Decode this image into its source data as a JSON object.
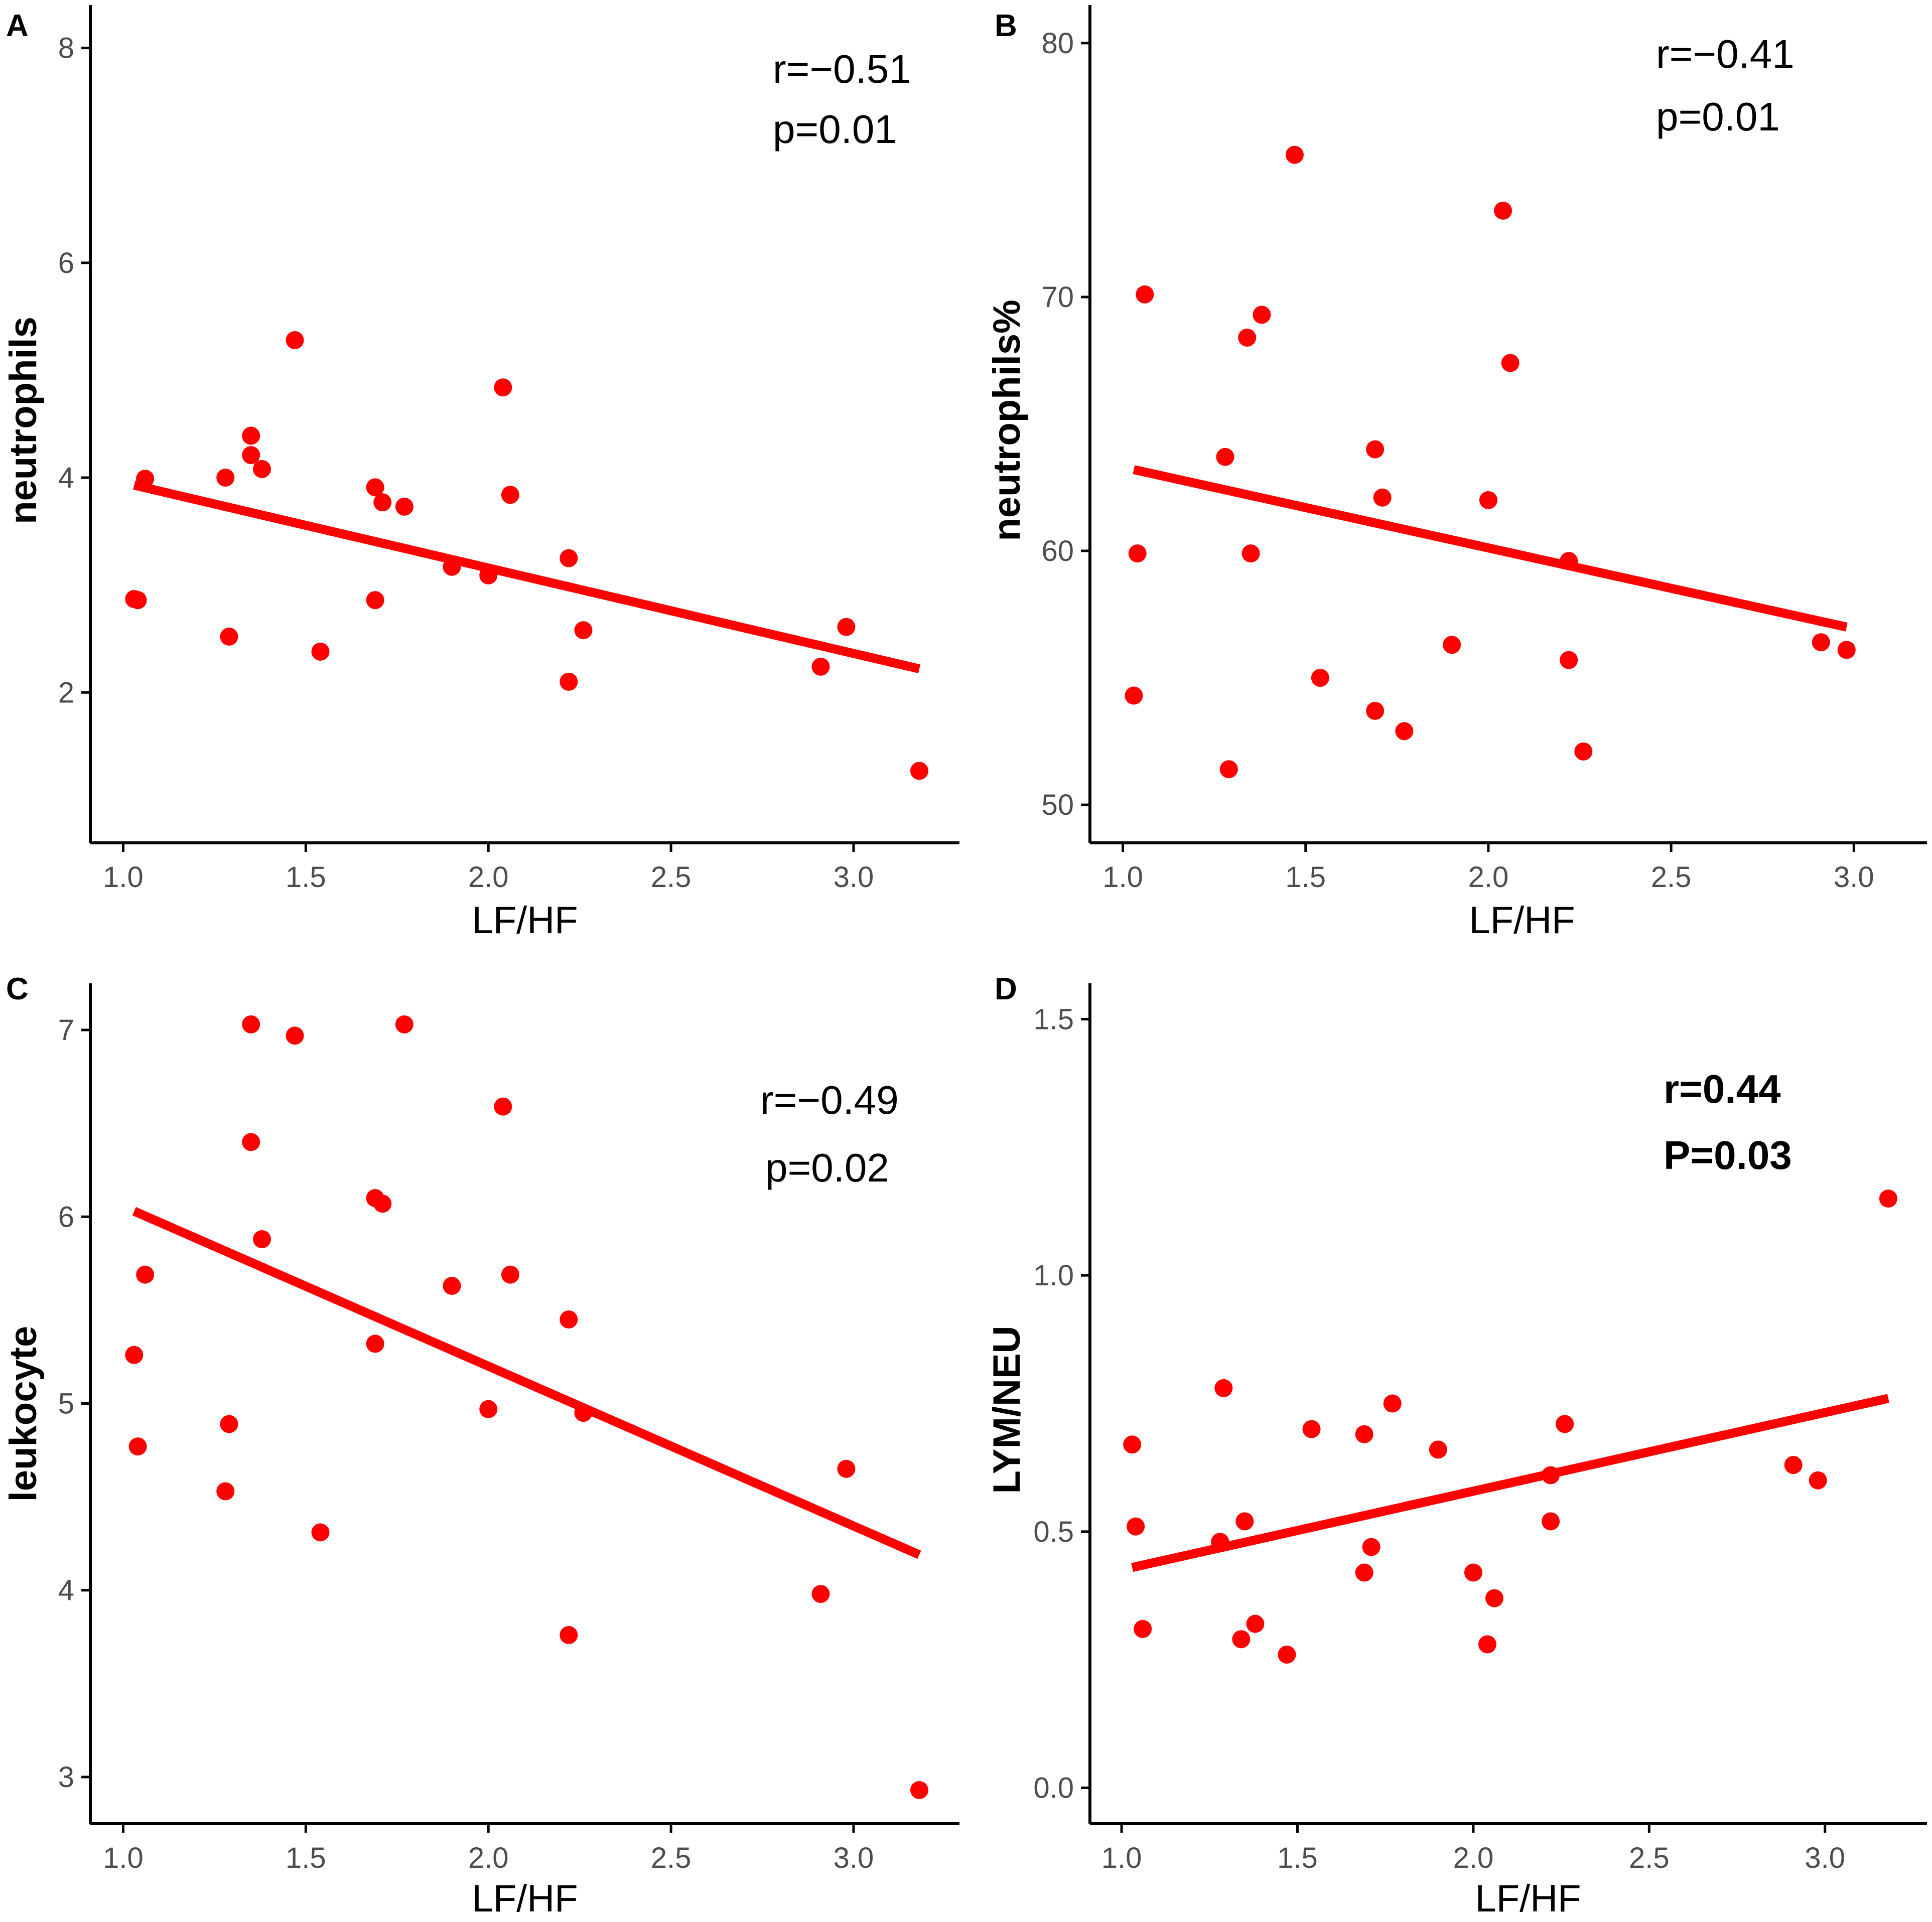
{
  "colors": {
    "point": "#ff0000",
    "line": "#ff0000",
    "axis": "#000000",
    "tick_text": "#4d4d4d"
  },
  "chart_data": [
    {
      "panel": "A",
      "type": "scatter",
      "xlabel": "LF/HF",
      "ylabel": "neutrophils",
      "xlim": [
        0.91,
        3.29
      ],
      "ylim": [
        0.6,
        8.4
      ],
      "xticks": [
        1.0,
        1.5,
        2.0,
        2.5,
        3.0
      ],
      "xtick_labels": [
        "1.0",
        "1.5",
        "2.0",
        "2.5",
        "3.0"
      ],
      "yticks": [
        2,
        4,
        6,
        8
      ],
      "ytick_labels": [
        "2",
        "4",
        "6",
        "8"
      ],
      "stat_lines": [
        "r=−0.51",
        "p=0.01"
      ],
      "stat_bold": false,
      "fit": {
        "x": [
          1.03,
          3.18
        ],
        "y": [
          3.93,
          2.22
        ]
      },
      "points": {
        "x": [
          1.03,
          1.04,
          1.06,
          1.28,
          1.29,
          1.35,
          1.35,
          1.38,
          1.47,
          1.54,
          1.69,
          1.69,
          1.71,
          1.77,
          1.9,
          2.0,
          2.04,
          2.06,
          2.22,
          2.22,
          2.26,
          2.91,
          2.98,
          3.18
        ],
        "y": [
          2.87,
          2.86,
          3.99,
          4.0,
          2.52,
          4.39,
          4.21,
          4.08,
          5.28,
          2.38,
          3.91,
          2.86,
          3.77,
          3.73,
          3.17,
          3.09,
          4.84,
          3.84,
          3.25,
          2.1,
          2.58,
          2.24,
          2.61,
          1.27
        ]
      }
    },
    {
      "panel": "B",
      "type": "scatter",
      "xlabel": "LF/HF",
      "ylabel": "neutrophils%",
      "xlim": [
        0.91,
        3.2
      ],
      "ylim": [
        48.5,
        81.5
      ],
      "xticks": [
        1.0,
        1.5,
        2.0,
        2.5,
        3.0
      ],
      "xtick_labels": [
        "1.0",
        "1.5",
        "2.0",
        "2.5",
        "3.0"
      ],
      "yticks": [
        50,
        60,
        70,
        80
      ],
      "ytick_labels": [
        "50",
        "60",
        "70",
        "80"
      ],
      "stat_lines": [
        "r=−0.41",
        "p=0.01"
      ],
      "stat_bold": false,
      "fit": {
        "x": [
          1.03,
          2.98
        ],
        "y": [
          63.2,
          57.0
        ]
      },
      "points": {
        "x": [
          1.03,
          1.04,
          1.06,
          1.28,
          1.29,
          1.34,
          1.35,
          1.38,
          1.47,
          1.54,
          1.69,
          1.69,
          1.71,
          1.77,
          1.9,
          2.0,
          2.04,
          2.06,
          2.22,
          2.22,
          2.26,
          2.91,
          2.98
        ],
        "y": [
          54.3,
          59.9,
          70.1,
          63.7,
          51.4,
          68.4,
          59.9,
          69.3,
          75.6,
          55.0,
          64.0,
          53.7,
          62.1,
          52.9,
          56.3,
          62.0,
          73.4,
          67.4,
          59.6,
          55.7,
          52.1,
          56.4,
          56.1
        ]
      }
    },
    {
      "panel": "C",
      "type": "scatter",
      "xlabel": "LF/HF",
      "ylabel": "leukocyte",
      "xlim": [
        0.91,
        3.29
      ],
      "ylim": [
        2.75,
        7.25
      ],
      "xticks": [
        1.0,
        1.5,
        2.0,
        2.5,
        3.0
      ],
      "xtick_labels": [
        "1.0",
        "1.5",
        "2.0",
        "2.5",
        "3.0"
      ],
      "yticks": [
        3,
        4,
        5,
        6,
        7
      ],
      "ytick_labels": [
        "3",
        "4",
        "5",
        "6",
        "7"
      ],
      "stat_lines": [
        "r=−0.49",
        "p=0.02"
      ],
      "stat_bold": false,
      "fit": {
        "x": [
          1.03,
          3.18
        ],
        "y": [
          6.03,
          4.19
        ]
      },
      "points": {
        "x": [
          1.03,
          1.04,
          1.06,
          1.28,
          1.29,
          1.35,
          1.35,
          1.38,
          1.47,
          1.54,
          1.69,
          1.69,
          1.71,
          1.77,
          1.9,
          2.0,
          2.04,
          2.06,
          2.22,
          2.22,
          2.26,
          2.91,
          2.98,
          3.18
        ],
        "y": [
          5.26,
          4.77,
          5.69,
          4.53,
          4.89,
          7.03,
          6.4,
          5.88,
          6.97,
          4.31,
          6.1,
          5.32,
          6.07,
          7.03,
          5.63,
          4.97,
          6.59,
          5.69,
          5.45,
          3.76,
          4.95,
          3.98,
          4.65,
          2.93
        ]
      }
    },
    {
      "panel": "D",
      "type": "scatter",
      "xlabel": "LF/HF",
      "ylabel": "LYM/NEU",
      "xlim": [
        0.91,
        3.29
      ],
      "ylim": [
        -0.07,
        1.57
      ],
      "xticks": [
        1.0,
        1.5,
        2.0,
        2.5,
        3.0
      ],
      "xtick_labels": [
        "1.0",
        "1.5",
        "2.0",
        "2.5",
        "3.0"
      ],
      "yticks": [
        0.0,
        0.5,
        1.0,
        1.5
      ],
      "ytick_labels": [
        "0.0",
        "0.5",
        "1.0",
        "1.5"
      ],
      "stat_lines": [
        "r=0.44",
        "P=0.03"
      ],
      "stat_bold": true,
      "fit": {
        "x": [
          1.03,
          3.18
        ],
        "y": [
          0.43,
          0.76
        ]
      },
      "points": {
        "x": [
          1.03,
          1.04,
          1.06,
          1.28,
          1.29,
          1.34,
          1.35,
          1.38,
          1.47,
          1.54,
          1.69,
          1.69,
          1.71,
          1.77,
          1.9,
          2.0,
          2.04,
          2.06,
          2.22,
          2.22,
          2.26,
          2.91,
          2.98,
          3.18
        ],
        "y": [
          0.67,
          0.51,
          0.31,
          0.48,
          0.78,
          0.29,
          0.52,
          0.32,
          0.26,
          0.7,
          0.69,
          0.42,
          0.47,
          0.75,
          0.66,
          0.42,
          0.28,
          0.37,
          0.61,
          0.52,
          0.71,
          0.63,
          0.6,
          1.15
        ]
      }
    }
  ]
}
